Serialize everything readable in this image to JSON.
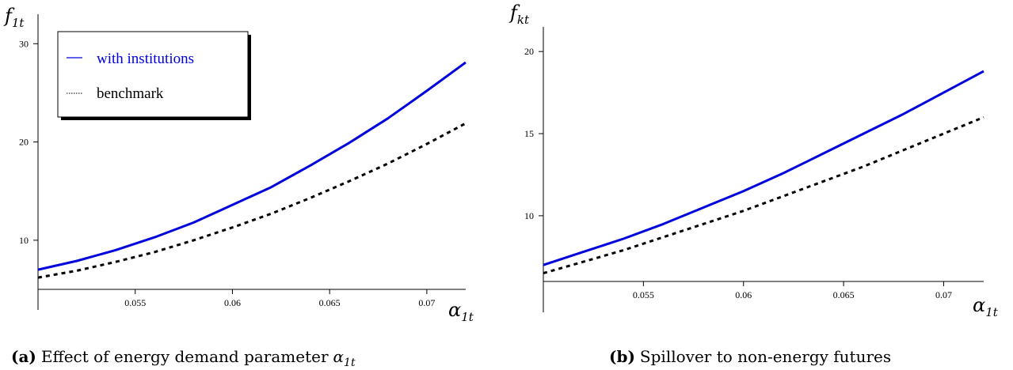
{
  "chart_data": [
    {
      "type": "line",
      "y_axis_label": "f",
      "y_axis_sub": "1t",
      "x_axis_label": "α",
      "x_axis_sub": "1t",
      "xlim": [
        0.05,
        0.072
      ],
      "ylim": [
        5,
        33
      ],
      "x_ticks": [
        0.055,
        0.06,
        0.065,
        0.07
      ],
      "x_tick_labels": [
        "0.055",
        "0.06",
        "0.065",
        "0.07"
      ],
      "y_ticks": [
        10,
        20,
        30
      ],
      "y_tick_labels": [
        "10",
        "20",
        "30"
      ],
      "grid": false,
      "legend": {
        "placement": "top-left",
        "entries": [
          {
            "label": "with institutions",
            "color": "#0000dd",
            "style": "solid"
          },
          {
            "label": "benchmark",
            "color": "#000000",
            "style": "dotted"
          }
        ]
      },
      "series": [
        {
          "name": "with institutions",
          "color": "#0000dd",
          "style": "solid",
          "x": [
            0.05,
            0.052,
            0.054,
            0.056,
            0.058,
            0.06,
            0.062,
            0.064,
            0.066,
            0.068,
            0.07,
            0.072
          ],
          "y": [
            7.0,
            7.9,
            9.0,
            10.3,
            11.8,
            13.6,
            15.4,
            17.6,
            19.9,
            22.4,
            25.2,
            28.1
          ]
        },
        {
          "name": "benchmark",
          "color": "#000000",
          "style": "dotted",
          "x": [
            0.05,
            0.052,
            0.054,
            0.056,
            0.058,
            0.06,
            0.062,
            0.064,
            0.066,
            0.068,
            0.07,
            0.072
          ],
          "y": [
            6.2,
            6.9,
            7.8,
            8.8,
            10.0,
            11.3,
            12.7,
            14.3,
            16.0,
            17.8,
            19.8,
            21.9
          ]
        }
      ],
      "caption_prefix": "(a)",
      "caption_text": "Effect of energy demand parameter",
      "caption_symbol": "α",
      "caption_symbol_sub": "1t"
    },
    {
      "type": "line",
      "y_axis_label": "f",
      "y_axis_sub": "kt",
      "x_axis_label": "α",
      "x_axis_sub": "1t",
      "xlim": [
        0.05,
        0.072
      ],
      "ylim": [
        6,
        21.5
      ],
      "x_ticks": [
        0.055,
        0.06,
        0.065,
        0.07
      ],
      "x_tick_labels": [
        "0.055",
        "0.06",
        "0.065",
        "0.07"
      ],
      "y_ticks": [
        10,
        15,
        20
      ],
      "y_tick_labels": [
        "10",
        "15",
        "20"
      ],
      "grid": false,
      "series": [
        {
          "name": "with institutions",
          "color": "#0000dd",
          "style": "solid",
          "x": [
            0.05,
            0.052,
            0.054,
            0.056,
            0.058,
            0.06,
            0.062,
            0.064,
            0.066,
            0.068,
            0.07,
            0.072
          ],
          "y": [
            7.0,
            7.8,
            8.6,
            9.5,
            10.5,
            11.5,
            12.6,
            13.8,
            15.0,
            16.2,
            17.5,
            18.8
          ]
        },
        {
          "name": "benchmark",
          "color": "#000000",
          "style": "dotted",
          "x": [
            0.05,
            0.052,
            0.054,
            0.056,
            0.058,
            0.06,
            0.062,
            0.064,
            0.066,
            0.068,
            0.07,
            0.072
          ],
          "y": [
            6.5,
            7.2,
            7.9,
            8.7,
            9.5,
            10.3,
            11.2,
            12.1,
            13.0,
            14.0,
            15.0,
            16.0
          ]
        }
      ],
      "caption_prefix": "(b)",
      "caption_text": "Spillover to non-energy futures"
    }
  ]
}
